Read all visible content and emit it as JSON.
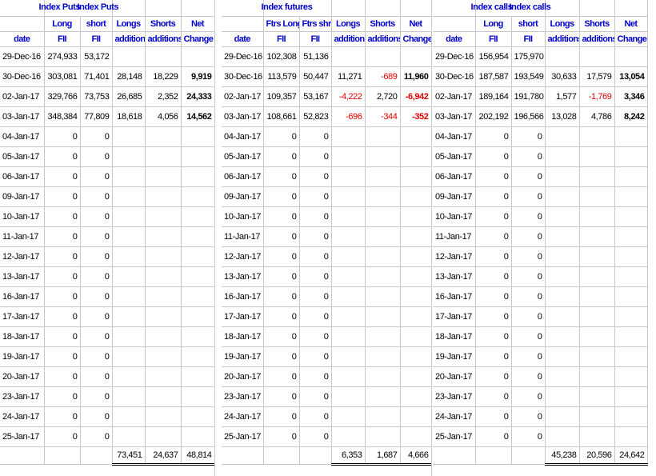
{
  "puts": {
    "title_a": "Index Puts",
    "title_b": "Index Puts",
    "headers1": [
      "",
      "Long",
      "short",
      "Longs",
      "Shorts",
      "Net"
    ],
    "headers2": [
      "date",
      "FII",
      "FII",
      "additions",
      "additions",
      "Change"
    ],
    "rows": [
      [
        "29-Dec-16",
        "274,933",
        "53,172",
        "",
        "",
        ""
      ],
      [
        "30-Dec-16",
        "303,081",
        "71,401",
        "28,148",
        "18,229",
        "9,919"
      ],
      [
        "02-Jan-17",
        "329,766",
        "73,753",
        "26,685",
        "2,352",
        "24,333"
      ],
      [
        "03-Jan-17",
        "348,384",
        "77,809",
        "18,618",
        "4,056",
        "14,562"
      ],
      [
        "04-Jan-17",
        "0",
        "0",
        "",
        "",
        ""
      ],
      [
        "05-Jan-17",
        "0",
        "0",
        "",
        "",
        ""
      ],
      [
        "06-Jan-17",
        "0",
        "0",
        "",
        "",
        ""
      ],
      [
        "09-Jan-17",
        "0",
        "0",
        "",
        "",
        ""
      ],
      [
        "10-Jan-17",
        "0",
        "0",
        "",
        "",
        ""
      ],
      [
        "11-Jan-17",
        "0",
        "0",
        "",
        "",
        ""
      ],
      [
        "12-Jan-17",
        "0",
        "0",
        "",
        "",
        ""
      ],
      [
        "13-Jan-17",
        "0",
        "0",
        "",
        "",
        ""
      ],
      [
        "16-Jan-17",
        "0",
        "0",
        "",
        "",
        ""
      ],
      [
        "17-Jan-17",
        "0",
        "0",
        "",
        "",
        ""
      ],
      [
        "18-Jan-17",
        "0",
        "0",
        "",
        "",
        ""
      ],
      [
        "19-Jan-17",
        "0",
        "0",
        "",
        "",
        ""
      ],
      [
        "20-Jan-17",
        "0",
        "0",
        "",
        "",
        ""
      ],
      [
        "23-Jan-17",
        "0",
        "0",
        "",
        "",
        ""
      ],
      [
        "24-Jan-17",
        "0",
        "0",
        "",
        "",
        ""
      ],
      [
        "25-Jan-17",
        "0",
        "0",
        "",
        "",
        ""
      ]
    ],
    "totals": [
      "73,451",
      "24,637",
      "48,814"
    ]
  },
  "futures": {
    "title": "Index futures",
    "headers1": [
      "",
      "Ftrs Long",
      "Ftrs shrt",
      "Longs",
      "Shorts",
      "Net"
    ],
    "headers2": [
      "date",
      "FII",
      "FII",
      "additions",
      "additions",
      "Change"
    ],
    "rows": [
      [
        "29-Dec-16",
        "102,308",
        "51,136",
        "",
        "",
        ""
      ],
      [
        "30-Dec-16",
        "113,579",
        "50,447",
        "11,271",
        "-689",
        "11,960"
      ],
      [
        "02-Jan-17",
        "109,357",
        "53,167",
        "-4,222",
        "2,720",
        "-6,942"
      ],
      [
        "03-Jan-17",
        "108,661",
        "52,823",
        "-696",
        "-344",
        "-352"
      ],
      [
        "04-Jan-17",
        "0",
        "0",
        "",
        "",
        ""
      ],
      [
        "05-Jan-17",
        "0",
        "0",
        "",
        "",
        ""
      ],
      [
        "06-Jan-17",
        "0",
        "0",
        "",
        "",
        ""
      ],
      [
        "09-Jan-17",
        "0",
        "0",
        "",
        "",
        ""
      ],
      [
        "10-Jan-17",
        "0",
        "0",
        "",
        "",
        ""
      ],
      [
        "11-Jan-17",
        "0",
        "0",
        "",
        "",
        ""
      ],
      [
        "12-Jan-17",
        "0",
        "0",
        "",
        "",
        ""
      ],
      [
        "13-Jan-17",
        "0",
        "0",
        "",
        "",
        ""
      ],
      [
        "16-Jan-17",
        "0",
        "0",
        "",
        "",
        ""
      ],
      [
        "17-Jan-17",
        "0",
        "0",
        "",
        "",
        ""
      ],
      [
        "18-Jan-17",
        "0",
        "0",
        "",
        "",
        ""
      ],
      [
        "19-Jan-17",
        "0",
        "0",
        "",
        "",
        ""
      ],
      [
        "20-Jan-17",
        "0",
        "0",
        "",
        "",
        ""
      ],
      [
        "23-Jan-17",
        "0",
        "0",
        "",
        "",
        ""
      ],
      [
        "24-Jan-17",
        "0",
        "0",
        "",
        "",
        ""
      ],
      [
        "25-Jan-17",
        "0",
        "0",
        "",
        "",
        ""
      ]
    ],
    "totals": [
      "6,353",
      "1,687",
      "4,666"
    ]
  },
  "calls": {
    "title_a": "Index calls",
    "title_b": "Index calls",
    "headers1": [
      "",
      "Long",
      "short",
      "Longs",
      "Shorts",
      "Net"
    ],
    "headers2": [
      "date",
      "FII",
      "FII",
      "additions",
      "additions",
      "Change"
    ],
    "rows": [
      [
        "29-Dec-16",
        "156,954",
        "175,970",
        "",
        "",
        ""
      ],
      [
        "30-Dec-16",
        "187,587",
        "193,549",
        "30,633",
        "17,579",
        "13,054"
      ],
      [
        "02-Jan-17",
        "189,164",
        "191,780",
        "1,577",
        "-1,769",
        "3,346"
      ],
      [
        "03-Jan-17",
        "202,192",
        "196,566",
        "13,028",
        "4,786",
        "8,242"
      ],
      [
        "04-Jan-17",
        "0",
        "0",
        "",
        "",
        ""
      ],
      [
        "05-Jan-17",
        "0",
        "0",
        "",
        "",
        ""
      ],
      [
        "06-Jan-17",
        "0",
        "0",
        "",
        "",
        ""
      ],
      [
        "09-Jan-17",
        "0",
        "0",
        "",
        "",
        ""
      ],
      [
        "10-Jan-17",
        "0",
        "0",
        "",
        "",
        ""
      ],
      [
        "11-Jan-17",
        "0",
        "0",
        "",
        "",
        ""
      ],
      [
        "12-Jan-17",
        "0",
        "0",
        "",
        "",
        ""
      ],
      [
        "13-Jan-17",
        "0",
        "0",
        "",
        "",
        ""
      ],
      [
        "16-Jan-17",
        "0",
        "0",
        "",
        "",
        ""
      ],
      [
        "17-Jan-17",
        "0",
        "0",
        "",
        "",
        ""
      ],
      [
        "18-Jan-17",
        "0",
        "0",
        "",
        "",
        ""
      ],
      [
        "19-Jan-17",
        "0",
        "0",
        "",
        "",
        ""
      ],
      [
        "20-Jan-17",
        "0",
        "0",
        "",
        "",
        ""
      ],
      [
        "23-Jan-17",
        "0",
        "0",
        "",
        "",
        ""
      ],
      [
        "24-Jan-17",
        "0",
        "0",
        "",
        "",
        ""
      ],
      [
        "25-Jan-17",
        "0",
        "0",
        "",
        "",
        ""
      ]
    ],
    "totals": [
      "45,238",
      "20,596",
      "24,642"
    ]
  },
  "colors": {
    "header": "#0000cc",
    "negative": "#e00000",
    "grid": "#c8c8c8"
  }
}
